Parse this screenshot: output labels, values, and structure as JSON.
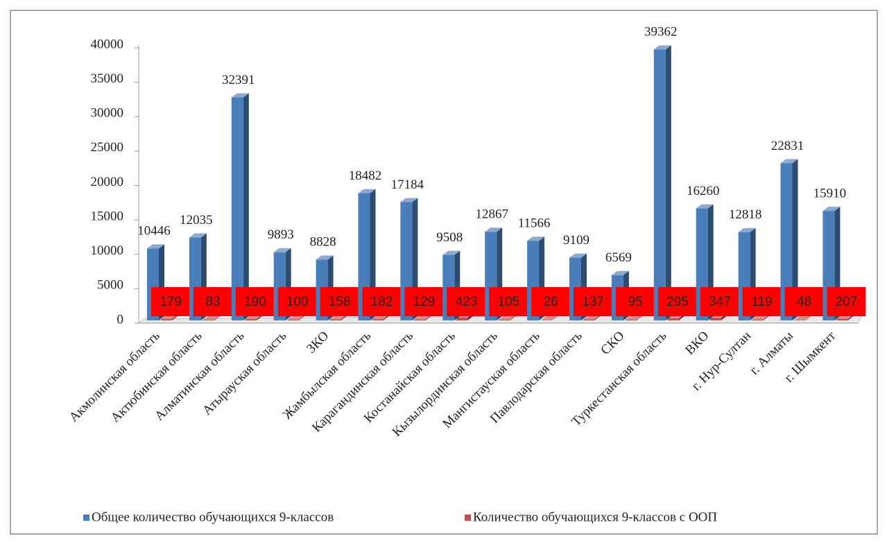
{
  "chart_data": {
    "type": "bar3d",
    "categories": [
      "Акмолинская область",
      "Актюбинская область",
      "Алматинская область",
      "Атырауская область",
      "ЗКО",
      "Жамбылская область",
      "Карагандинская область",
      "Костанайская область",
      "Кызылординская область",
      "Мангистауская область",
      "Павлодарская область",
      "СКО",
      "Туркестанская область",
      "ВКО",
      "г. Нур-Султан",
      "г. Алматы",
      "г. Шымкент"
    ],
    "series": [
      {
        "name": "Общее количество обучающихся 9-классов",
        "color": "#4a7ebb",
        "values": [
          10446,
          12035,
          32391,
          9893,
          8828,
          18482,
          17184,
          9508,
          12867,
          11566,
          9109,
          6569,
          39362,
          16260,
          12818,
          22831,
          15910
        ]
      },
      {
        "name": "Количество обучающихся 9-классов с ООП",
        "color": "#c0504d",
        "values": [
          179,
          83,
          190,
          100,
          158,
          182,
          129,
          423,
          105,
          26,
          137,
          95,
          295,
          347,
          119,
          48,
          207
        ]
      }
    ],
    "ylim": [
      0,
      40000
    ],
    "yticks": [
      0,
      5000,
      10000,
      15000,
      20000,
      25000,
      30000,
      35000,
      40000
    ]
  }
}
